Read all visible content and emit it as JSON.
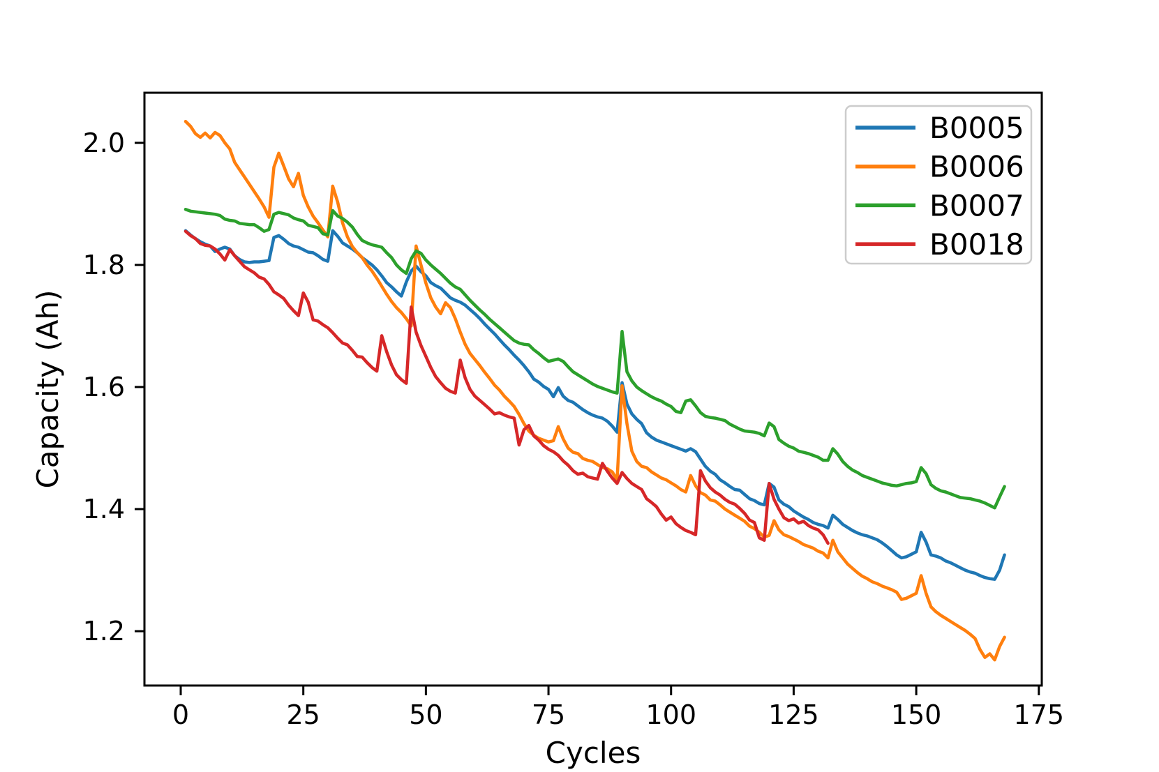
{
  "chart_data": {
    "type": "line",
    "title": "",
    "xlabel": "Cycles",
    "ylabel": "Capacity (Ah)",
    "xlim": [
      -7.4,
      175.6
    ],
    "ylim": [
      1.111,
      2.082
    ],
    "x_tick_labels": [
      "0",
      "25",
      "50",
      "75",
      "100",
      "125",
      "150",
      "175"
    ],
    "y_tick_labels": [
      "1.2",
      "1.4",
      "1.6",
      "1.8",
      "2.0"
    ],
    "grid": false,
    "legend_position": "upper right",
    "legend_entries": [
      "B0005",
      "B0006",
      "B0007",
      "B0018"
    ],
    "colors": {
      "B0005": "#1f77b4",
      "B0006": "#ff7f0e",
      "B0007": "#2ca02c",
      "B0018": "#d62728",
      "axis": "#000000",
      "legend_border": "#cccccc",
      "background": "#ffffff"
    },
    "series": [
      {
        "name": "B0005",
        "color": "#1f77b4",
        "start_cycle": 1,
        "values": [
          1.856,
          1.849,
          1.843,
          1.838,
          1.834,
          1.831,
          1.822,
          1.826,
          1.829,
          1.826,
          1.815,
          1.809,
          1.805,
          1.804,
          1.805,
          1.805,
          1.806,
          1.807,
          1.845,
          1.848,
          1.842,
          1.835,
          1.831,
          1.829,
          1.825,
          1.821,
          1.82,
          1.815,
          1.809,
          1.806,
          1.856,
          1.847,
          1.836,
          1.831,
          1.826,
          1.82,
          1.812,
          1.806,
          1.8,
          1.792,
          1.782,
          1.771,
          1.764,
          1.756,
          1.749,
          1.772,
          1.79,
          1.798,
          1.789,
          1.782,
          1.771,
          1.766,
          1.762,
          1.754,
          1.746,
          1.742,
          1.739,
          1.734,
          1.727,
          1.72,
          1.712,
          1.703,
          1.695,
          1.687,
          1.678,
          1.669,
          1.661,
          1.652,
          1.644,
          1.635,
          1.625,
          1.613,
          1.608,
          1.601,
          1.596,
          1.584,
          1.599,
          1.585,
          1.578,
          1.575,
          1.569,
          1.563,
          1.558,
          1.554,
          1.551,
          1.549,
          1.544,
          1.536,
          1.526,
          1.607,
          1.572,
          1.556,
          1.547,
          1.54,
          1.525,
          1.518,
          1.513,
          1.51,
          1.507,
          1.504,
          1.501,
          1.498,
          1.495,
          1.499,
          1.494,
          1.482,
          1.47,
          1.462,
          1.457,
          1.448,
          1.443,
          1.437,
          1.432,
          1.431,
          1.424,
          1.417,
          1.414,
          1.409,
          1.407,
          1.442,
          1.436,
          1.415,
          1.408,
          1.404,
          1.397,
          1.392,
          1.387,
          1.383,
          1.378,
          1.375,
          1.373,
          1.369,
          1.39,
          1.383,
          1.375,
          1.37,
          1.365,
          1.361,
          1.358,
          1.356,
          1.353,
          1.35,
          1.345,
          1.339,
          1.332,
          1.325,
          1.32,
          1.322,
          1.326,
          1.33,
          1.362,
          1.346,
          1.325,
          1.323,
          1.32,
          1.315,
          1.312,
          1.308,
          1.304,
          1.3,
          1.297,
          1.295,
          1.291,
          1.288,
          1.286,
          1.285,
          1.3,
          1.325
        ]
      },
      {
        "name": "B0006",
        "color": "#ff7f0e",
        "start_cycle": 1,
        "values": [
          2.035,
          2.027,
          2.015,
          2.009,
          2.016,
          2.008,
          2.017,
          2.012,
          2.0,
          1.99,
          1.968,
          1.956,
          1.944,
          1.932,
          1.92,
          1.908,
          1.895,
          1.878,
          1.96,
          1.983,
          1.962,
          1.941,
          1.928,
          1.95,
          1.914,
          1.895,
          1.88,
          1.869,
          1.857,
          1.846,
          1.929,
          1.903,
          1.869,
          1.846,
          1.83,
          1.82,
          1.812,
          1.8,
          1.79,
          1.778,
          1.765,
          1.752,
          1.74,
          1.73,
          1.722,
          1.712,
          1.7,
          1.831,
          1.8,
          1.77,
          1.746,
          1.731,
          1.72,
          1.738,
          1.73,
          1.712,
          1.69,
          1.67,
          1.655,
          1.645,
          1.635,
          1.624,
          1.614,
          1.603,
          1.595,
          1.585,
          1.577,
          1.568,
          1.555,
          1.54,
          1.528,
          1.521,
          1.516,
          1.513,
          1.51,
          1.512,
          1.535,
          1.515,
          1.5,
          1.493,
          1.491,
          1.483,
          1.48,
          1.478,
          1.473,
          1.468,
          1.466,
          1.461,
          1.448,
          1.602,
          1.54,
          1.495,
          1.478,
          1.47,
          1.468,
          1.461,
          1.456,
          1.451,
          1.448,
          1.443,
          1.438,
          1.432,
          1.428,
          1.455,
          1.438,
          1.427,
          1.423,
          1.415,
          1.413,
          1.407,
          1.4,
          1.395,
          1.39,
          1.385,
          1.38,
          1.372,
          1.368,
          1.362,
          1.354,
          1.357,
          1.381,
          1.366,
          1.358,
          1.355,
          1.351,
          1.347,
          1.342,
          1.339,
          1.336,
          1.331,
          1.328,
          1.32,
          1.349,
          1.33,
          1.32,
          1.31,
          1.303,
          1.296,
          1.29,
          1.286,
          1.281,
          1.278,
          1.274,
          1.271,
          1.268,
          1.264,
          1.252,
          1.254,
          1.258,
          1.262,
          1.291,
          1.262,
          1.24,
          1.232,
          1.226,
          1.221,
          1.216,
          1.211,
          1.206,
          1.201,
          1.195,
          1.188,
          1.17,
          1.157,
          1.163,
          1.153,
          1.175,
          1.19
        ]
      },
      {
        "name": "B0007",
        "color": "#2ca02c",
        "start_cycle": 1,
        "values": [
          1.891,
          1.888,
          1.887,
          1.886,
          1.885,
          1.884,
          1.883,
          1.881,
          1.875,
          1.873,
          1.872,
          1.868,
          1.867,
          1.866,
          1.866,
          1.861,
          1.855,
          1.858,
          1.883,
          1.886,
          1.884,
          1.882,
          1.877,
          1.874,
          1.872,
          1.865,
          1.863,
          1.861,
          1.851,
          1.849,
          1.889,
          1.88,
          1.876,
          1.87,
          1.862,
          1.85,
          1.84,
          1.836,
          1.833,
          1.831,
          1.829,
          1.82,
          1.812,
          1.8,
          1.792,
          1.786,
          1.81,
          1.823,
          1.819,
          1.808,
          1.8,
          1.793,
          1.786,
          1.778,
          1.77,
          1.764,
          1.76,
          1.751,
          1.742,
          1.734,
          1.726,
          1.719,
          1.711,
          1.704,
          1.697,
          1.69,
          1.683,
          1.676,
          1.672,
          1.67,
          1.669,
          1.661,
          1.655,
          1.648,
          1.642,
          1.644,
          1.646,
          1.642,
          1.633,
          1.625,
          1.62,
          1.615,
          1.61,
          1.605,
          1.601,
          1.598,
          1.595,
          1.592,
          1.59,
          1.691,
          1.625,
          1.61,
          1.6,
          1.594,
          1.589,
          1.584,
          1.58,
          1.577,
          1.572,
          1.568,
          1.56,
          1.558,
          1.577,
          1.579,
          1.569,
          1.558,
          1.552,
          1.55,
          1.549,
          1.547,
          1.545,
          1.539,
          1.535,
          1.531,
          1.528,
          1.527,
          1.526,
          1.524,
          1.52,
          1.541,
          1.535,
          1.514,
          1.508,
          1.503,
          1.5,
          1.495,
          1.493,
          1.491,
          1.488,
          1.485,
          1.48,
          1.48,
          1.499,
          1.49,
          1.478,
          1.47,
          1.464,
          1.46,
          1.455,
          1.452,
          1.449,
          1.446,
          1.443,
          1.441,
          1.439,
          1.438,
          1.44,
          1.442,
          1.443,
          1.445,
          1.468,
          1.458,
          1.44,
          1.434,
          1.43,
          1.428,
          1.425,
          1.422,
          1.419,
          1.418,
          1.417,
          1.415,
          1.413,
          1.41,
          1.406,
          1.402,
          1.42,
          1.437
        ]
      },
      {
        "name": "B0018",
        "color": "#d62728",
        "start_cycle": 1,
        "values": [
          1.855,
          1.848,
          1.843,
          1.835,
          1.832,
          1.831,
          1.826,
          1.818,
          1.808,
          1.825,
          1.815,
          1.806,
          1.797,
          1.792,
          1.787,
          1.78,
          1.777,
          1.768,
          1.756,
          1.751,
          1.745,
          1.734,
          1.725,
          1.717,
          1.754,
          1.739,
          1.71,
          1.708,
          1.702,
          1.697,
          1.689,
          1.68,
          1.672,
          1.669,
          1.66,
          1.65,
          1.649,
          1.64,
          1.632,
          1.626,
          1.684,
          1.658,
          1.636,
          1.62,
          1.612,
          1.606,
          1.731,
          1.69,
          1.668,
          1.65,
          1.632,
          1.617,
          1.607,
          1.598,
          1.593,
          1.59,
          1.644,
          1.615,
          1.596,
          1.585,
          1.578,
          1.571,
          1.564,
          1.556,
          1.558,
          1.554,
          1.551,
          1.549,
          1.505,
          1.53,
          1.537,
          1.52,
          1.513,
          1.504,
          1.498,
          1.494,
          1.488,
          1.479,
          1.472,
          1.463,
          1.457,
          1.459,
          1.453,
          1.451,
          1.449,
          1.475,
          1.462,
          1.451,
          1.442,
          1.46,
          1.45,
          1.442,
          1.437,
          1.432,
          1.417,
          1.411,
          1.404,
          1.392,
          1.382,
          1.387,
          1.376,
          1.37,
          1.365,
          1.362,
          1.358,
          1.463,
          1.446,
          1.435,
          1.428,
          1.423,
          1.416,
          1.411,
          1.408,
          1.401,
          1.393,
          1.382,
          1.378,
          1.353,
          1.349,
          1.442,
          1.416,
          1.4,
          1.386,
          1.381,
          1.384,
          1.377,
          1.38,
          1.373,
          1.369,
          1.366,
          1.358,
          1.344
        ]
      }
    ]
  }
}
